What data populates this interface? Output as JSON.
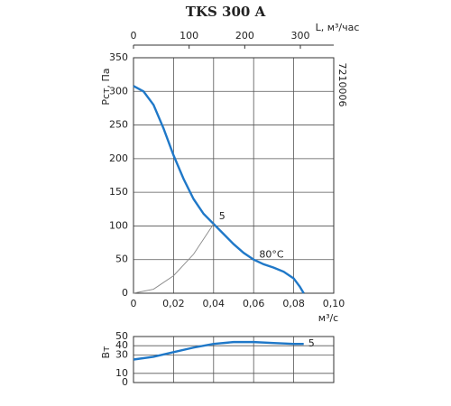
{
  "chart_data": [
    {
      "type": "line",
      "title": "TKS 300 A",
      "code": "7210006",
      "xlabel": "м³/с",
      "ylabel": "Рст, Па",
      "x2label": "L, м³/час",
      "x2lim": [
        0,
        360
      ],
      "x2ticks": [
        0,
        100,
        200,
        300
      ],
      "xlim": [
        0,
        0.1
      ],
      "xticks": [
        0,
        {
          "value": 0.02,
          "label": "0,02"
        },
        {
          "value": 0.04,
          "label": "0,04"
        },
        {
          "value": 0.06,
          "label": "0,06"
        },
        {
          "value": 0.08,
          "label": "0,08"
        },
        {
          "value": 0.1,
          "label": "0,10"
        }
      ],
      "ylim": [
        0,
        350
      ],
      "yticks": [
        0,
        50,
        100,
        150,
        200,
        250,
        300,
        350
      ],
      "grid": true,
      "annotations": [
        "5",
        "80°C"
      ],
      "series": [
        {
          "color": "#1f78c8",
          "x": [
            0,
            0.005,
            0.01,
            0.015,
            0.02,
            0.025,
            0.03,
            0.035,
            0.04,
            0.045,
            0.05,
            0.055,
            0.06,
            0.065,
            0.07,
            0.075,
            0.08,
            0.083,
            0.085
          ],
          "values": [
            308,
            300,
            280,
            245,
            205,
            170,
            140,
            118,
            103,
            88,
            73,
            60,
            50,
            43,
            38,
            32,
            22,
            10,
            0
          ]
        },
        {
          "color": "#888888",
          "x": [
            0,
            0.01,
            0.02,
            0.03,
            0.04
          ],
          "values": [
            0,
            6,
            26,
            58,
            103
          ]
        }
      ]
    },
    {
      "type": "line",
      "ylabel": "Вт",
      "xlim": [
        0,
        0.1
      ],
      "ylim": [
        0,
        50
      ],
      "yticks": [
        0,
        10,
        30,
        40,
        50
      ],
      "grid": true,
      "annotations": [
        "5"
      ],
      "series": [
        {
          "color": "#1f78c8",
          "x": [
            0,
            0.01,
            0.02,
            0.03,
            0.04,
            0.05,
            0.06,
            0.07,
            0.08,
            0.085
          ],
          "values": [
            25,
            28,
            33,
            38,
            42,
            44,
            44,
            43,
            42,
            42
          ]
        }
      ]
    }
  ]
}
